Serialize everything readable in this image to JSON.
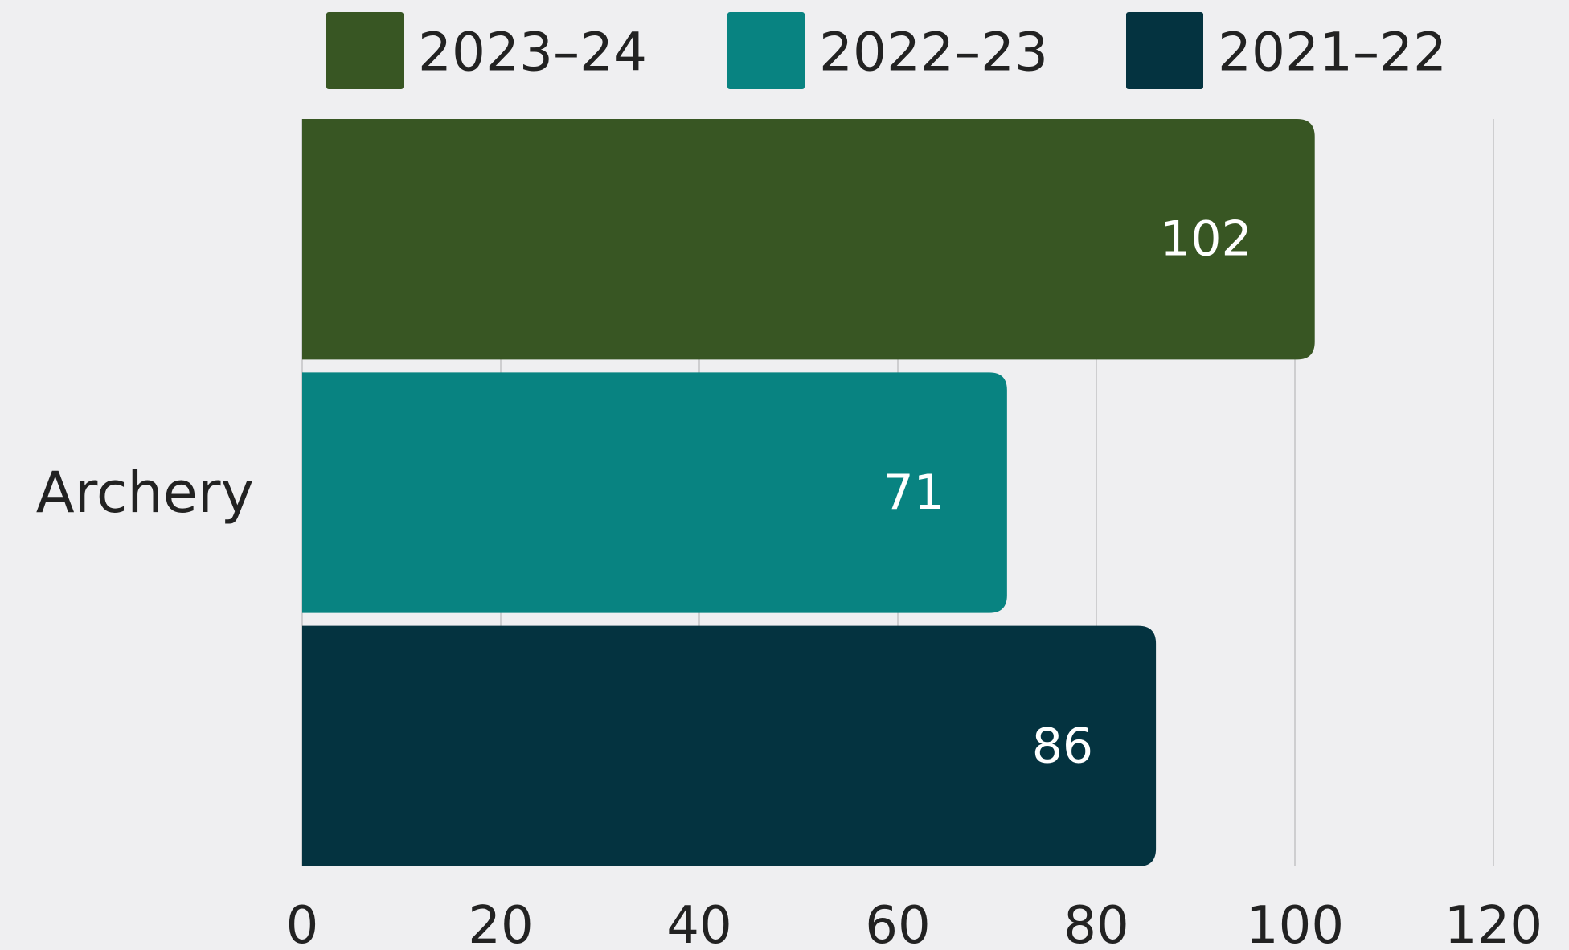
{
  "chart_data": {
    "type": "bar",
    "orientation": "horizontal",
    "categories": [
      "Archery"
    ],
    "series": [
      {
        "name": "2023–24",
        "values": [
          102
        ],
        "color": "#385623"
      },
      {
        "name": "2022–23",
        "values": [
          71
        ],
        "color": "#088381"
      },
      {
        "name": "2021–22",
        "values": [
          86
        ],
        "color": "#043340"
      }
    ],
    "data_labels": [
      "102",
      "71",
      "86"
    ],
    "x_ticks": [
      "0",
      "20",
      "40",
      "60",
      "80",
      "100",
      "120"
    ],
    "xlim": [
      0,
      120
    ],
    "title": "",
    "xlabel": "",
    "ylabel": "",
    "grid": "vertical",
    "legend_position": "top"
  },
  "colors": {
    "background": "#efeff1",
    "grid": "#c4c4c6",
    "text": "#222222",
    "data_label": "#ffffff"
  }
}
